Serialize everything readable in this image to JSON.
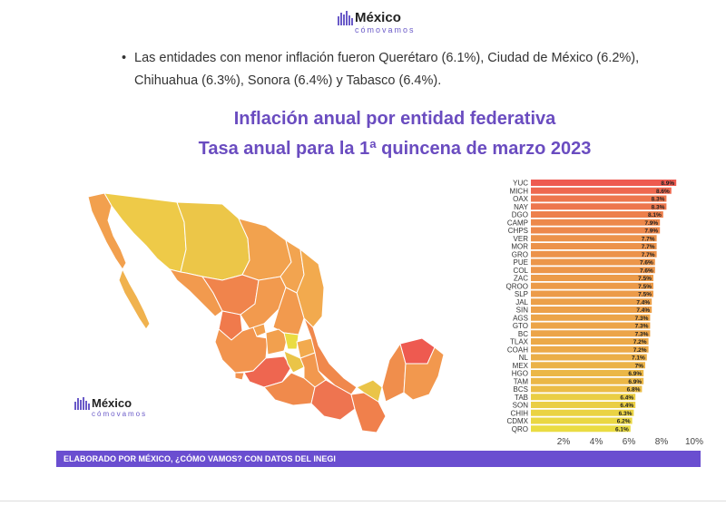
{
  "logo": {
    "brand": "México",
    "sub": "cómovamos"
  },
  "bullet": {
    "marker": "•",
    "text": "Las entidades con menor inflación fueron Querétaro (6.1%), Ciudad de México (6.2%), Chihuahua (6.3%), Sonora (6.4%) y Tabasco (6.4%)."
  },
  "title_line1": "Inflación anual por entidad federativa",
  "title_line2": "Tasa anual para la 1ª quincena de marzo 2023",
  "footer": "ELABORADO POR MÉXICO, ¿CÓMO VAMOS? CON DATOS DEL INEGI",
  "colors": {
    "accent": "#6a4cc0",
    "high": "#ee5a50",
    "low": "#eadc42"
  },
  "chart_data": {
    "type": "bar",
    "orientation": "horizontal",
    "categories": [
      "YUC",
      "MICH",
      "OAX",
      "NAY",
      "DGO",
      "CAMP",
      "CHPS",
      "VER",
      "MOR",
      "GRO",
      "PUE",
      "COL",
      "ZAC",
      "QROO",
      "SLP",
      "JAL",
      "SIN",
      "AGS",
      "GTO",
      "BC",
      "TLAX",
      "COAH",
      "NL",
      "MEX",
      "HGO",
      "TAM",
      "BCS",
      "TAB",
      "SON",
      "CHIH",
      "CDMX",
      "QRO"
    ],
    "values": [
      8.9,
      8.6,
      8.3,
      8.3,
      8.1,
      7.9,
      7.9,
      7.7,
      7.7,
      7.7,
      7.6,
      7.6,
      7.5,
      7.5,
      7.5,
      7.4,
      7.4,
      7.3,
      7.3,
      7.3,
      7.2,
      7.2,
      7.1,
      7,
      6.9,
      6.9,
      6.8,
      6.4,
      6.4,
      6.3,
      6.2,
      6.1
    ],
    "labels": [
      "8.9%",
      "8.6%",
      "8.3%",
      "8.3%",
      "8.1%",
      "7.9%",
      "7.9%",
      "7.7%",
      "7.7%",
      "7.7%",
      "7.6%",
      "7.6%",
      "7.5%",
      "7.5%",
      "7.5%",
      "7.4%",
      "7.4%",
      "7.3%",
      "7.3%",
      "7.3%",
      "7.2%",
      "7.2%",
      "7.1%",
      "7%",
      "6.9%",
      "6.9%",
      "6.8%",
      "6.4%",
      "6.4%",
      "6.3%",
      "6.2%",
      "6.1%"
    ],
    "xticks": [
      "2%",
      "4%",
      "6%",
      "8%",
      "10%"
    ],
    "xtick_values": [
      2,
      4,
      6,
      8,
      10
    ],
    "xlim": [
      0,
      10
    ]
  }
}
